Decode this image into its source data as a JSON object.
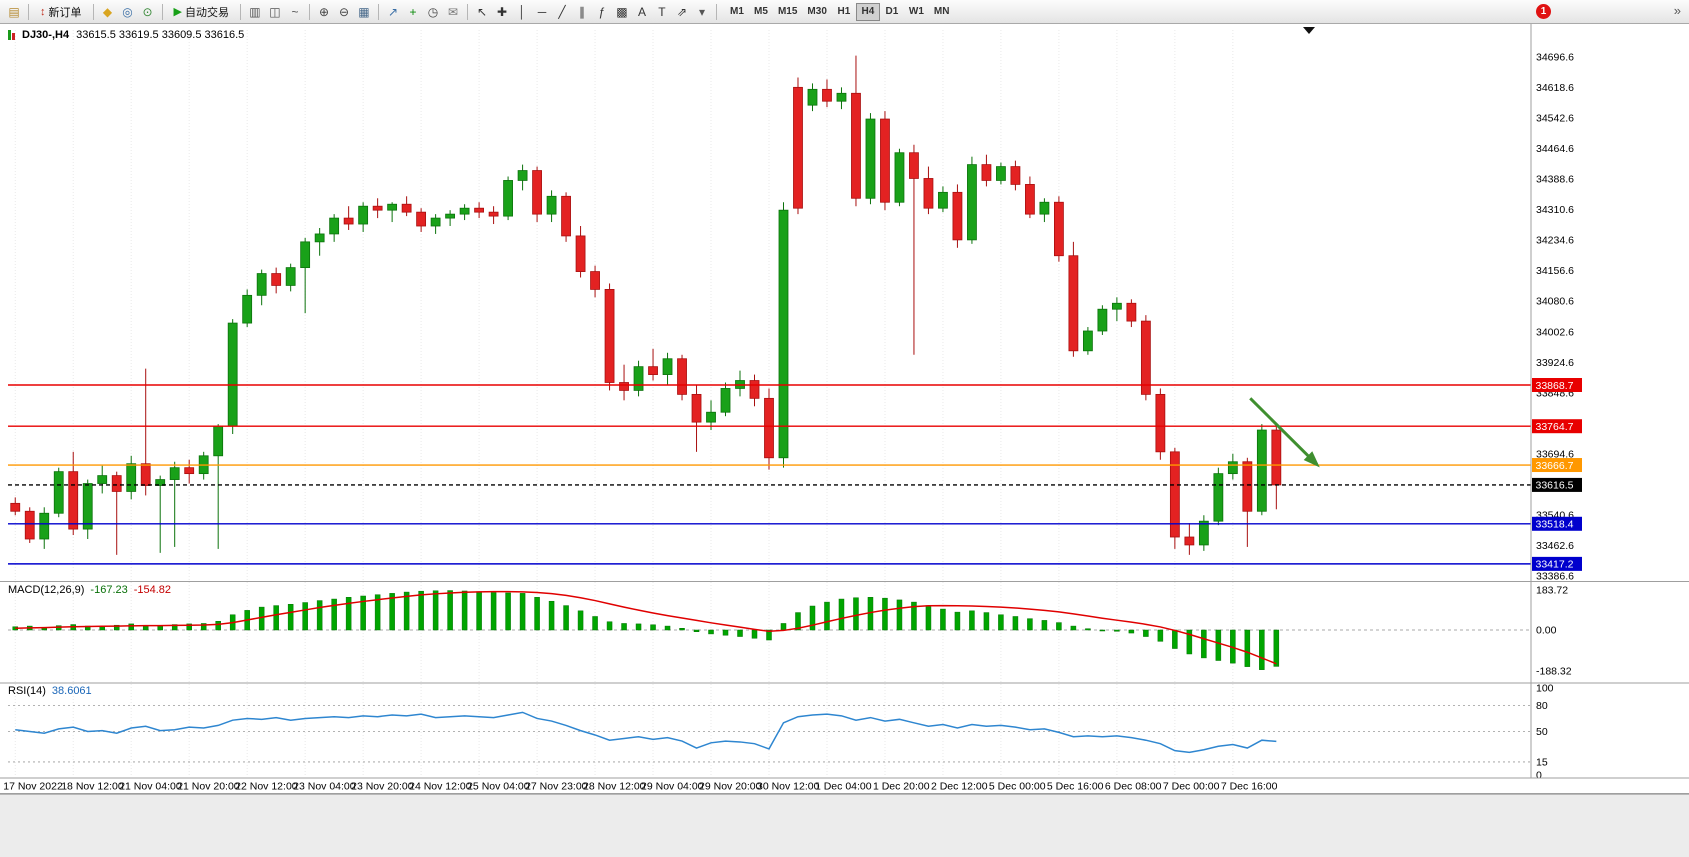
{
  "toolbar": {
    "new_order": "新订单",
    "auto_trading": "自动交易",
    "timeframes": [
      "M1",
      "M5",
      "M15",
      "M30",
      "H1",
      "H4",
      "D1",
      "W1",
      "MN"
    ],
    "active_timeframe": "H4",
    "notification_badge": "1",
    "overflow_glyph": "»",
    "groups": [
      [
        {
          "n": "new-chart-icon",
          "g": "▤",
          "c": "#b5892e"
        }
      ],
      [
        {
          "n": "new-order-button",
          "g": "↕",
          "c": "#c03020",
          "label": "新订单"
        }
      ],
      [
        {
          "n": "alerts-icon",
          "g": "◆",
          "c": "#d9a520"
        },
        {
          "n": "market-watch-icon",
          "g": "◎",
          "c": "#3a6ea5"
        },
        {
          "n": "refresh-icon",
          "g": "⊙",
          "c": "#3a8a3a"
        }
      ],
      [
        {
          "n": "auto-trading-button",
          "g": "▶",
          "c": "#17a017",
          "label": "自动交易"
        }
      ],
      [
        {
          "n": "bar-chart-icon",
          "g": "▥",
          "c": "#555555"
        },
        {
          "n": "candlestick-chart-icon",
          "g": "◫",
          "c": "#555555"
        },
        {
          "n": "line-chart-icon",
          "g": "~",
          "c": "#555555"
        }
      ],
      [
        {
          "n": "zoom-in-icon",
          "g": "⊕",
          "c": "#444444"
        },
        {
          "n": "zoom-out-icon",
          "g": "⊖",
          "c": "#444444"
        },
        {
          "n": "tile-windows-icon",
          "g": "▦",
          "c": "#446688"
        }
      ],
      [
        {
          "n": "indicators-icon",
          "g": "↗",
          "c": "#3a6ea5"
        },
        {
          "n": "add-indicator-icon",
          "g": "+",
          "c": "#0a8a0a"
        },
        {
          "n": "period-icon",
          "g": "◷",
          "c": "#444444"
        },
        {
          "n": "mail-icon",
          "g": "✉",
          "c": "#777777"
        }
      ],
      [
        {
          "n": "cursor-icon",
          "g": "↖",
          "c": "#333333"
        },
        {
          "n": "crosshair-icon",
          "g": "✚",
          "c": "#333333"
        },
        {
          "n": "vertical-line-icon",
          "g": "│",
          "c": "#333333"
        },
        {
          "n": "horizontal-line-icon",
          "g": "─",
          "c": "#333333"
        },
        {
          "n": "trendline-icon",
          "g": "╱",
          "c": "#333333"
        },
        {
          "n": "channel-icon",
          "g": "∥",
          "c": "#333333"
        },
        {
          "n": "fibonacci-icon",
          "g": "ƒ",
          "c": "#333333"
        },
        {
          "n": "grid-icon",
          "g": "▩",
          "c": "#333333"
        },
        {
          "n": "text-icon",
          "g": "A",
          "c": "#333333"
        },
        {
          "n": "text-label-icon",
          "g": "T",
          "c": "#333333"
        },
        {
          "n": "arrows-icon",
          "g": "⇗",
          "c": "#333333"
        },
        {
          "n": "dropdown-icon",
          "g": "▾",
          "c": "#555555"
        }
      ]
    ]
  },
  "chart_data": {
    "type": "candlestick",
    "symbol": "DJ30-,H4",
    "ohlc_text": "33615.5 33619.5 33609.5 33616.5",
    "visible_slots": 105,
    "bars_per_label": 4,
    "price_axis": {
      "labels": [
        "34696.6",
        "34618.6",
        "34542.6",
        "34464.6",
        "34388.6",
        "34310.6",
        "34234.6",
        "34156.6",
        "34080.6",
        "34002.6",
        "33924.6",
        "33848.6",
        "33772.6",
        "33694.6",
        "33616.6",
        "33540.6",
        "33462.6",
        "33386.6"
      ]
    },
    "time_labels": [
      "17 Nov 2022",
      "18 Nov 12:00",
      "21 Nov 04:00",
      "21 Nov 20:00",
      "22 Nov 12:00",
      "23 Nov 04:00",
      "23 Nov 20:00",
      "24 Nov 12:00",
      "25 Nov 04:00",
      "27 Nov 23:00",
      "28 Nov 12:00",
      "29 Nov 04:00",
      "29 Nov 20:00",
      "30 Nov 12:00",
      "1 Dec 04:00",
      "1 Dec 20:00",
      "2 Dec 12:00",
      "5 Dec 00:00",
      "5 Dec 16:00",
      "6 Dec 08:00",
      "7 Dec 00:00",
      "7 Dec 16:00"
    ],
    "candles": [
      [
        33570,
        33585,
        33540,
        33550
      ],
      [
        33550,
        33560,
        33470,
        33480
      ],
      [
        33480,
        33560,
        33455,
        33545
      ],
      [
        33545,
        33660,
        33535,
        33650
      ],
      [
        33650,
        33700,
        33490,
        33505
      ],
      [
        33505,
        33630,
        33480,
        33620
      ],
      [
        33620,
        33665,
        33595,
        33640
      ],
      [
        33640,
        33650,
        33440,
        33600
      ],
      [
        33600,
        33690,
        33580,
        33670
      ],
      [
        33670,
        33910,
        33590,
        33615
      ],
      [
        33615,
        33640,
        33445,
        33630
      ],
      [
        33630,
        33675,
        33460,
        33660
      ],
      [
        33660,
        33680,
        33620,
        33645
      ],
      [
        33645,
        33700,
        33630,
        33690
      ],
      [
        33690,
        33770,
        33455,
        33765
      ],
      [
        33765,
        34035,
        33745,
        34025
      ],
      [
        34025,
        34110,
        34015,
        34095
      ],
      [
        34095,
        34160,
        34070,
        34150
      ],
      [
        34150,
        34165,
        34100,
        34120
      ],
      [
        34120,
        34175,
        34105,
        34165
      ],
      [
        34165,
        34240,
        34050,
        34230
      ],
      [
        34230,
        34265,
        34195,
        34250
      ],
      [
        34250,
        34300,
        34230,
        34290
      ],
      [
        34290,
        34320,
        34260,
        34275
      ],
      [
        34275,
        34330,
        34255,
        34320
      ],
      [
        34320,
        34340,
        34290,
        34310
      ],
      [
        34310,
        34330,
        34280,
        34325
      ],
      [
        34325,
        34345,
        34295,
        34305
      ],
      [
        34305,
        34315,
        34255,
        34270
      ],
      [
        34270,
        34300,
        34250,
        34290
      ],
      [
        34290,
        34310,
        34270,
        34300
      ],
      [
        34300,
        34325,
        34285,
        34315
      ],
      [
        34315,
        34330,
        34290,
        34305
      ],
      [
        34305,
        34320,
        34275,
        34295
      ],
      [
        34295,
        34395,
        34285,
        34385
      ],
      [
        34385,
        34425,
        34360,
        34410
      ],
      [
        34410,
        34420,
        34280,
        34300
      ],
      [
        34300,
        34360,
        34280,
        34345
      ],
      [
        34345,
        34355,
        34230,
        34245
      ],
      [
        34245,
        34270,
        34140,
        34155
      ],
      [
        34155,
        34170,
        34090,
        34110
      ],
      [
        34110,
        34125,
        33855,
        33875
      ],
      [
        33875,
        33920,
        33830,
        33855
      ],
      [
        33855,
        33930,
        33840,
        33915
      ],
      [
        33915,
        33960,
        33880,
        33895
      ],
      [
        33895,
        33950,
        33870,
        33935
      ],
      [
        33935,
        33945,
        33830,
        33845
      ],
      [
        33845,
        33870,
        33700,
        33775
      ],
      [
        33775,
        33830,
        33755,
        33800
      ],
      [
        33800,
        33875,
        33790,
        33860
      ],
      [
        33860,
        33905,
        33840,
        33880
      ],
      [
        33880,
        33895,
        33815,
        33835
      ],
      [
        33835,
        33860,
        33655,
        33685
      ],
      [
        33685,
        34330,
        33660,
        34310
      ],
      [
        34620,
        34645,
        34300,
        34315
      ],
      [
        34575,
        34630,
        34560,
        34615
      ],
      [
        34615,
        34640,
        34570,
        34585
      ],
      [
        34585,
        34620,
        34565,
        34605
      ],
      [
        34605,
        34700,
        34320,
        34340
      ],
      [
        34340,
        34555,
        34325,
        34540
      ],
      [
        34540,
        34560,
        34310,
        34330
      ],
      [
        34330,
        34465,
        34320,
        34455
      ],
      [
        34455,
        34475,
        33945,
        34390
      ],
      [
        34390,
        34420,
        34300,
        34315
      ],
      [
        34315,
        34370,
        34305,
        34355
      ],
      [
        34355,
        34375,
        34215,
        34235
      ],
      [
        34235,
        34445,
        34225,
        34425
      ],
      [
        34425,
        34450,
        34370,
        34385
      ],
      [
        34385,
        34430,
        34375,
        34420
      ],
      [
        34420,
        34435,
        34360,
        34375
      ],
      [
        34375,
        34395,
        34290,
        34300
      ],
      [
        34300,
        34340,
        34280,
        34330
      ],
      [
        34330,
        34345,
        34180,
        34195
      ],
      [
        34195,
        34230,
        33940,
        33955
      ],
      [
        33955,
        34015,
        33945,
        34005
      ],
      [
        34005,
        34070,
        33995,
        34060
      ],
      [
        34060,
        34090,
        34030,
        34075
      ],
      [
        34075,
        34085,
        34015,
        34030
      ],
      [
        34030,
        34045,
        33830,
        33845
      ],
      [
        33845,
        33860,
        33680,
        33700
      ],
      [
        33700,
        33710,
        33455,
        33485
      ],
      [
        33485,
        33520,
        33440,
        33465
      ],
      [
        33465,
        33540,
        33450,
        33525
      ],
      [
        33525,
        33660,
        33515,
        33645
      ],
      [
        33645,
        33695,
        33630,
        33675
      ],
      [
        33675,
        33685,
        33460,
        33550
      ],
      [
        33550,
        33770,
        33540,
        33755
      ],
      [
        33755,
        33765,
        33555,
        33616.5
      ]
    ],
    "hlines": [
      {
        "value": 33868.7,
        "tag": "33868.7",
        "color": "#e80000"
      },
      {
        "value": 33764.7,
        "tag": "33764.7",
        "color": "#e80000"
      },
      {
        "value": 33666.7,
        "tag": "33666.7",
        "color": "#ff9800"
      },
      {
        "value": 33616.5,
        "tag": "33616.5",
        "color": "#000000",
        "style": "dashed"
      },
      {
        "value": 33518.4,
        "tag": "33518.4",
        "color": "#0000cd"
      },
      {
        "value": 33417.2,
        "tag": "33417.2",
        "color": "#0000cd"
      }
    ],
    "arrow": {
      "from_bar": 85.2,
      "from_price": 33835,
      "to_bar": 89.8,
      "to_price": 33668,
      "color": "#3f8f2f"
    },
    "macd": {
      "label": "MACD(12,26,9)",
      "value_main": "-167.23",
      "value_signal": "-154.82",
      "scale": [
        "183.72",
        "0.00",
        "-188.32"
      ],
      "histogram": [
        15,
        18,
        12,
        20,
        25,
        18,
        15,
        22,
        28,
        20,
        18,
        25,
        28,
        30,
        40,
        70,
        90,
        105,
        112,
        118,
        126,
        135,
        142,
        150,
        156,
        162,
        168,
        174,
        178,
        180,
        181,
        179,
        176,
        172,
        170,
        168,
        150,
        132,
        112,
        88,
        62,
        38,
        30,
        28,
        24,
        18,
        8,
        -8,
        -18,
        -24,
        -30,
        -38,
        -46,
        30,
        80,
        110,
        128,
        142,
        148,
        150,
        146,
        138,
        128,
        112,
        96,
        82,
        88,
        80,
        70,
        62,
        52,
        44,
        34,
        18,
        6,
        0,
        -6,
        -14,
        -30,
        -52,
        -85,
        -110,
        -128,
        -140,
        -152,
        -168,
        -182,
        -167
      ],
      "signal": [
        8,
        10,
        11,
        13,
        15,
        16,
        17,
        18,
        19,
        20,
        20,
        21,
        22,
        23,
        26,
        34,
        46,
        58,
        70,
        81,
        92,
        103,
        113,
        122,
        131,
        139,
        147,
        154,
        161,
        166,
        170,
        173,
        175,
        176,
        176,
        175,
        172,
        167,
        159,
        148,
        135,
        120,
        105,
        91,
        78,
        66,
        55,
        44,
        33,
        23,
        13,
        3,
        -6,
        -2,
        8,
        22,
        38,
        53,
        67,
        80,
        91,
        100,
        107,
        111,
        112,
        111,
        110,
        108,
        105,
        101,
        96,
        90,
        83,
        74,
        64,
        54,
        45,
        36,
        26,
        14,
        -2,
        -20,
        -40,
        -60,
        -80,
        -102,
        -128,
        -155
      ]
    },
    "rsi": {
      "label": "RSI(14)",
      "value": "38.6061",
      "scale_labels": [
        "100",
        "80",
        "50",
        "15",
        "0"
      ],
      "levels": [
        80,
        50,
        15
      ],
      "values": [
        52,
        50,
        48,
        53,
        55,
        50,
        51,
        48,
        54,
        56,
        51,
        52,
        55,
        54,
        57,
        63,
        65,
        64,
        66,
        63,
        65,
        66,
        67,
        66,
        68,
        67,
        69,
        68,
        70,
        66,
        67,
        68,
        67,
        66,
        69,
        72,
        65,
        62,
        57,
        51,
        46,
        40,
        42,
        44,
        41,
        43,
        39,
        31,
        37,
        39,
        38,
        36,
        30,
        60,
        67,
        69,
        70,
        68,
        63,
        66,
        62,
        64,
        60,
        56,
        58,
        54,
        58,
        56,
        57,
        55,
        52,
        53,
        49,
        44,
        45,
        44,
        45,
        43,
        40,
        36,
        28,
        26,
        29,
        33,
        35,
        31,
        40,
        38.6
      ]
    }
  }
}
